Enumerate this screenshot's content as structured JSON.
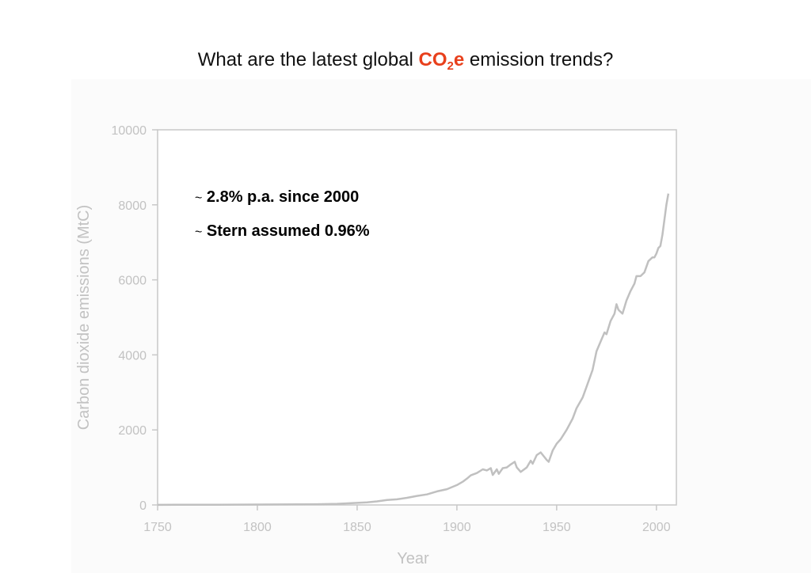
{
  "title": {
    "prefix": "What are the latest global ",
    "highlight_main": "CO",
    "highlight_sub": "2",
    "highlight_suffix": "e",
    "suffix": " emission trends?",
    "highlight_color": "#e8401c"
  },
  "annotations": [
    {
      "tilde": "~",
      "text": "2.8% p.a. since 2000"
    },
    {
      "tilde": "~",
      "text": "Stern assumed 0.96%"
    }
  ],
  "chart_data": {
    "type": "line",
    "xlabel": "Year",
    "ylabel": "Carbon dioxide emissions (MtC)",
    "xlim": [
      1750,
      2010
    ],
    "ylim": [
      0,
      10000
    ],
    "xticks": [
      1750,
      1800,
      1850,
      1900,
      1950,
      2000
    ],
    "yticks": [
      0,
      2000,
      4000,
      6000,
      8000,
      10000
    ],
    "grid": false,
    "line_color": "#c0c0c0",
    "series": [
      {
        "x": [
          1750,
          1760,
          1770,
          1780,
          1790,
          1800,
          1810,
          1820,
          1830,
          1840,
          1850,
          1855,
          1860,
          1865,
          1870,
          1875,
          1880,
          1885,
          1890,
          1895,
          1900,
          1903,
          1905,
          1907,
          1910,
          1913,
          1915,
          1917,
          1918,
          1920,
          1921,
          1923,
          1925,
          1927,
          1929,
          1930,
          1932,
          1935,
          1937,
          1938,
          1940,
          1942,
          1945,
          1946,
          1948,
          1950,
          1952,
          1955,
          1958,
          1960,
          1963,
          1965,
          1968,
          1970,
          1972,
          1974,
          1975,
          1977,
          1979,
          1980,
          1981,
          1983,
          1985,
          1987,
          1989,
          1990,
          1992,
          1994,
          1996,
          1998,
          1999,
          2000,
          2001,
          2002,
          2003,
          2004,
          2005,
          2006
        ],
        "y": [
          3,
          4,
          5,
          6,
          8,
          10,
          12,
          14,
          20,
          30,
          55,
          70,
          95,
          130,
          150,
          190,
          240,
          280,
          360,
          420,
          530,
          620,
          700,
          790,
          850,
          950,
          920,
          980,
          800,
          950,
          830,
          980,
          1000,
          1080,
          1150,
          1000,
          880,
          1000,
          1180,
          1100,
          1330,
          1400,
          1200,
          1150,
          1450,
          1630,
          1750,
          2000,
          2300,
          2580,
          2860,
          3150,
          3600,
          4100,
          4350,
          4600,
          4550,
          4900,
          5100,
          5350,
          5200,
          5100,
          5450,
          5700,
          5900,
          6100,
          6100,
          6200,
          6500,
          6600,
          6600,
          6700,
          6850,
          6900,
          7200,
          7600,
          8000,
          8300
        ]
      }
    ]
  }
}
